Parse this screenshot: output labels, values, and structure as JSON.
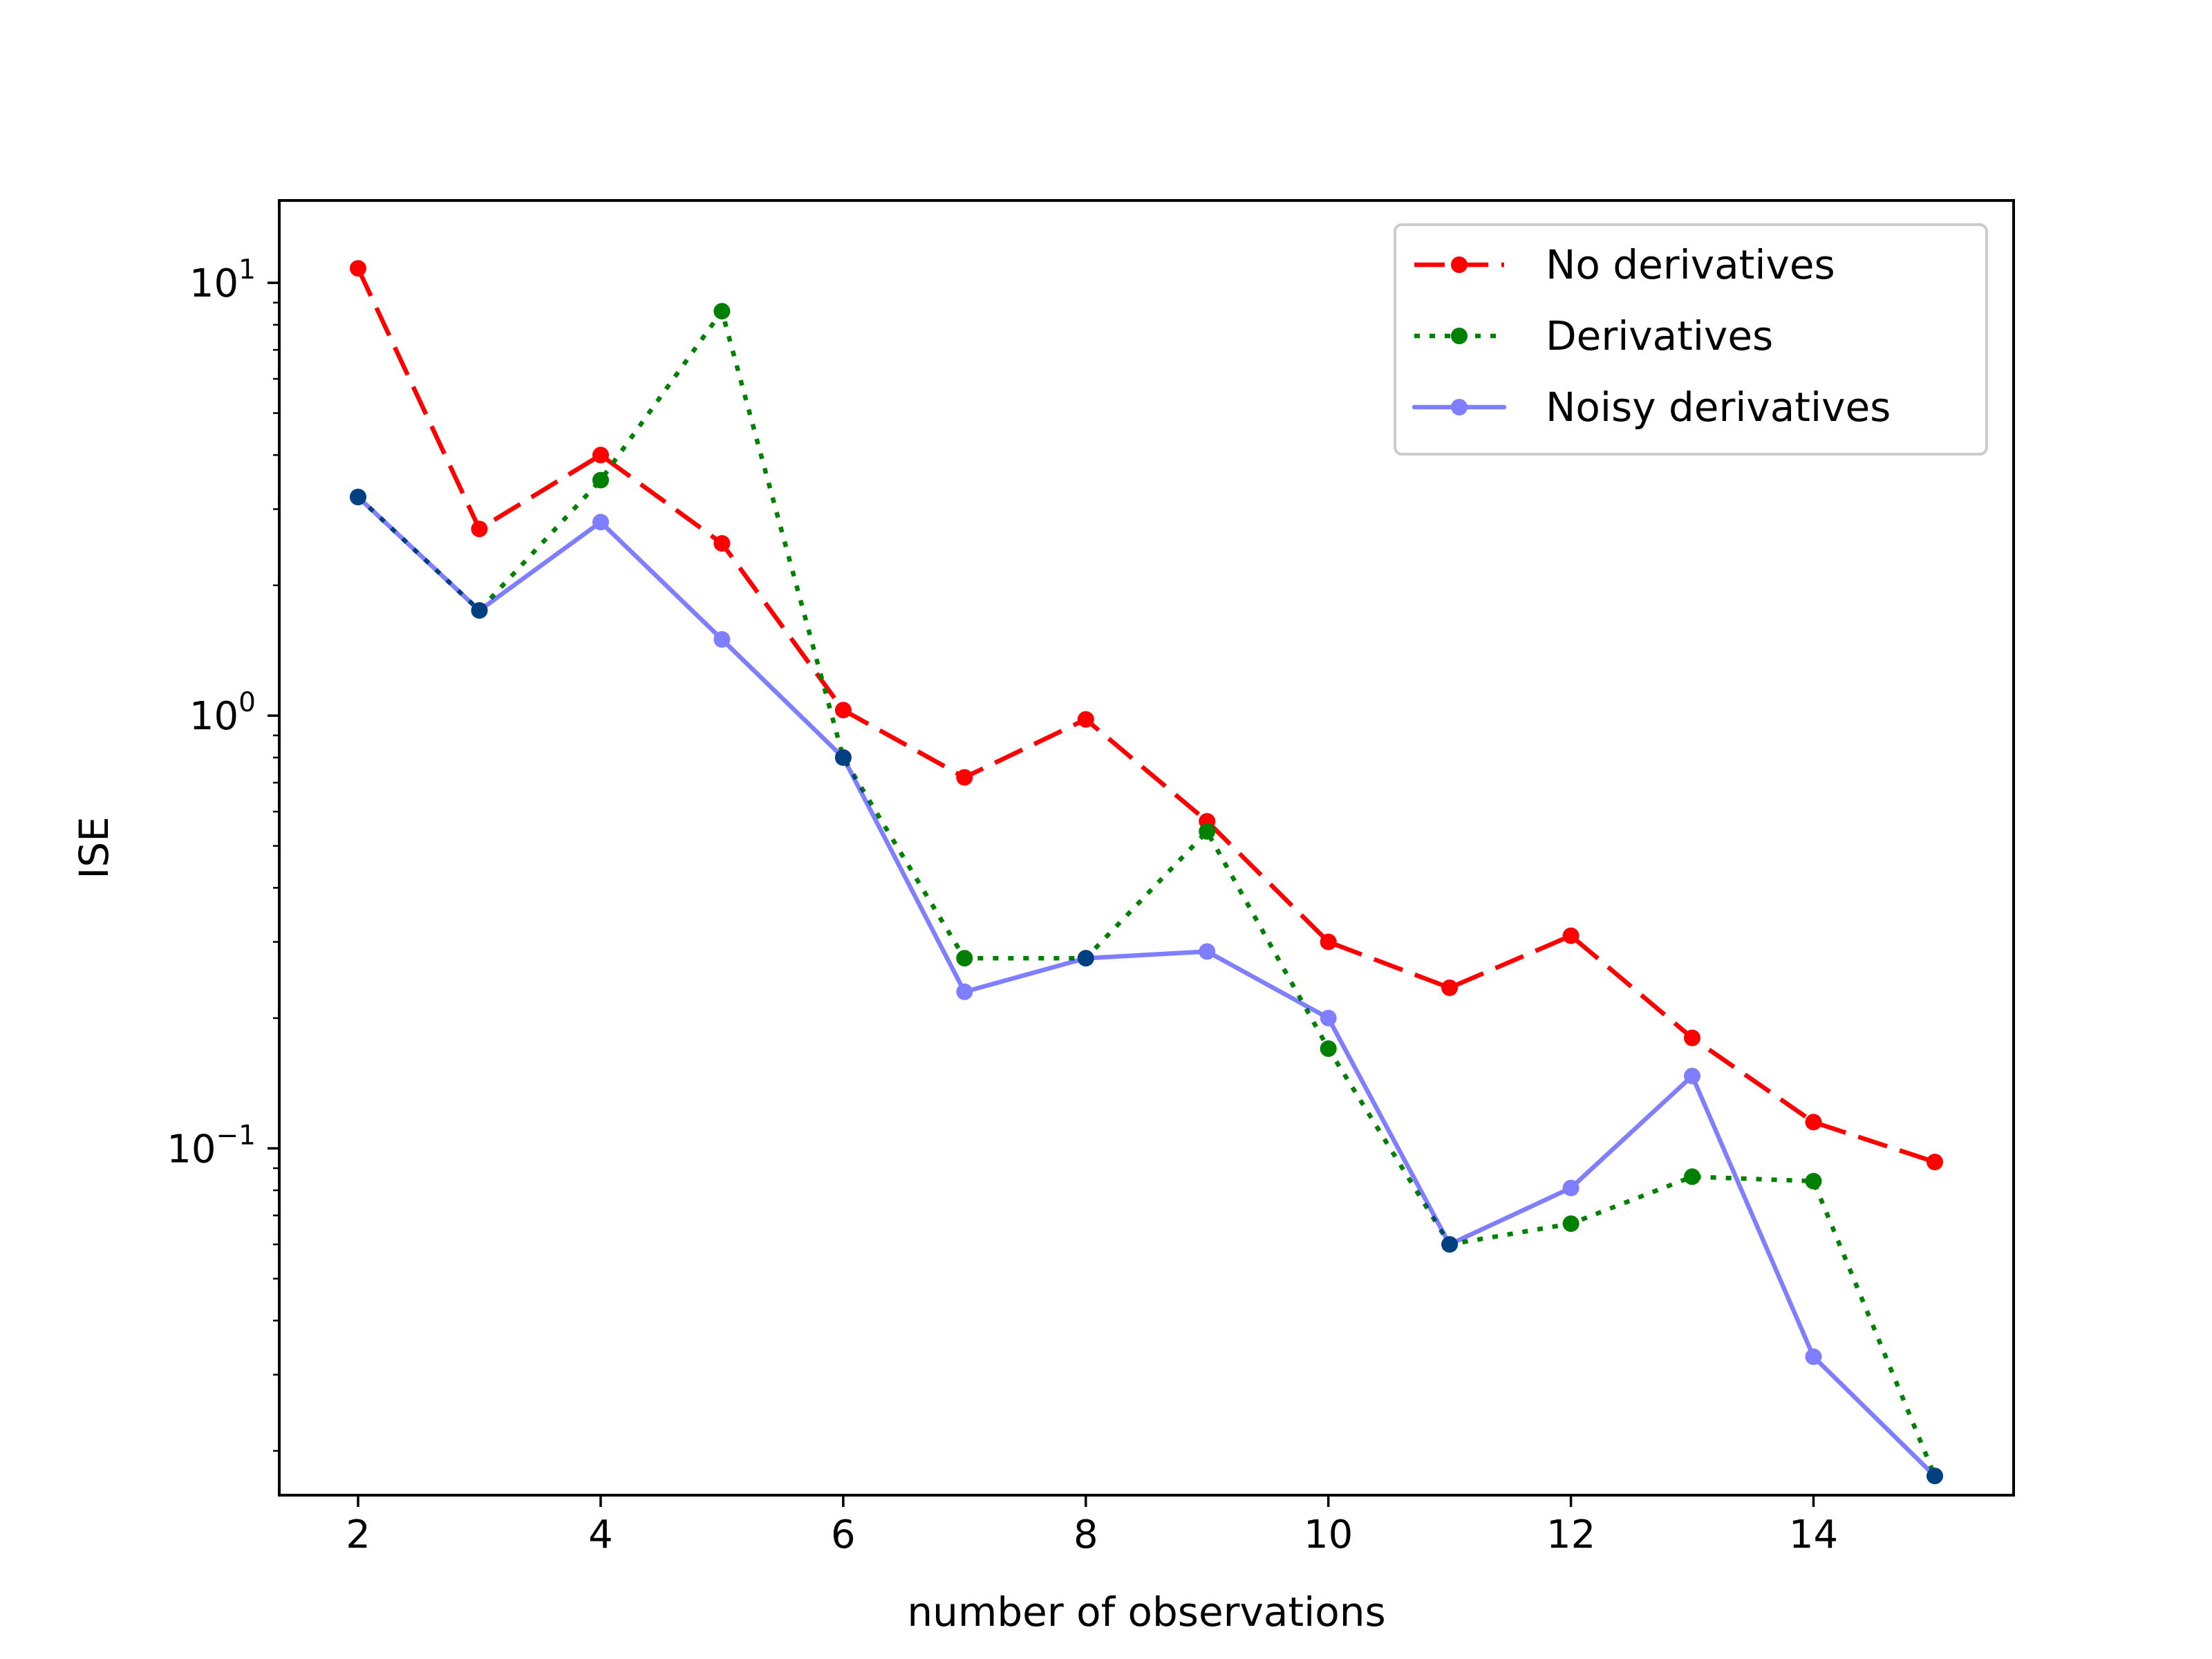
{
  "chart_data": {
    "type": "line",
    "title": "",
    "xlabel": "number of observations",
    "ylabel": "ISE",
    "yscale": "log",
    "xlim": [
      1.35,
      15.65
    ],
    "ylim": [
      0.0158,
      15.5
    ],
    "xticks": [
      2,
      4,
      6,
      8,
      10,
      12,
      14
    ],
    "yticks": [
      {
        "value": 10,
        "base": "10",
        "exp": "1"
      },
      {
        "value": 1,
        "base": "10",
        "exp": "0"
      },
      {
        "value": 0.1,
        "base": "10",
        "exp": "−1"
      }
    ],
    "grid": false,
    "legend_position": "upper right",
    "x": [
      2,
      3,
      4,
      5,
      6,
      7,
      8,
      9,
      10,
      11,
      12,
      13,
      14,
      15
    ],
    "series": [
      {
        "name": "No derivatives",
        "color": "#ff0000",
        "linestyle": "dashed",
        "opacity": 1,
        "values": [
          10.8,
          2.7,
          4.0,
          2.5,
          1.03,
          0.72,
          0.98,
          0.57,
          0.3,
          0.235,
          0.31,
          0.18,
          0.115,
          0.093
        ]
      },
      {
        "name": "Derivatives",
        "color": "#008000",
        "linestyle": "dotted",
        "opacity": 1,
        "values": [
          3.2,
          1.75,
          3.5,
          8.6,
          0.8,
          0.275,
          0.275,
          0.54,
          0.17,
          0.06,
          0.067,
          0.086,
          0.084,
          0.0175
        ]
      },
      {
        "name": "Noisy derivatives",
        "color": "#0000ff",
        "linestyle": "solid",
        "opacity": 0.5,
        "values": [
          3.2,
          1.75,
          2.8,
          1.5,
          0.8,
          0.23,
          0.275,
          0.285,
          0.2,
          0.06,
          0.081,
          0.147,
          0.033,
          0.0175
        ]
      }
    ]
  }
}
